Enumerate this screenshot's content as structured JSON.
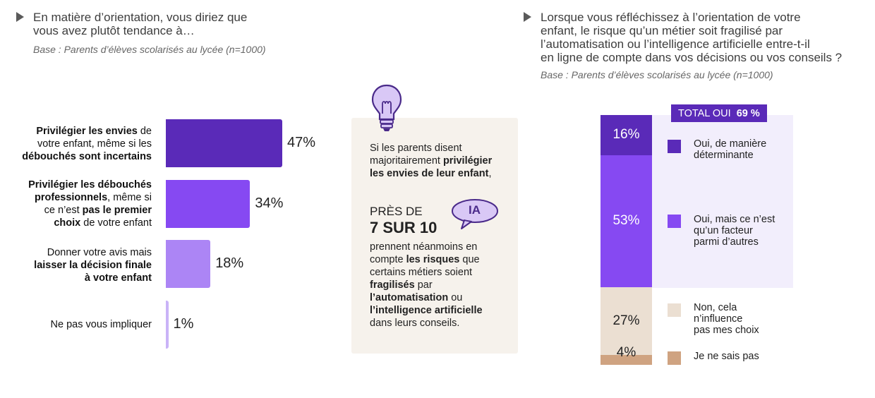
{
  "left": {
    "title_line1": "En matière d’orientation, vous diriez que",
    "title_line2": "vous avez plutôt tendance à…",
    "base": "Base : Parents d’élèves scolarisés au lycée (n=1000)"
  },
  "right": {
    "title_line1": "Lorsque vous réfléchissez à l’orientation de votre",
    "title_line2": "enfant, le risque qu’un métier soit fragilisé par",
    "title_line3": "l’automatisation ou l’intelligence artificielle entre-t-il",
    "title_line4": "en ligne de compte dans vos décisions ou vos conseils ?",
    "base": "Base : Parents d’élèves scolarisés au lycée (n=1000)",
    "total_label": "TOTAL OUI",
    "total_value": "69 %"
  },
  "card": {
    "intro_1": "Si les parents disent",
    "intro_2a": "majoritairement ",
    "intro_2b": "privilégier",
    "intro_3": "les envies de leur enfant",
    "intro_3b": ",",
    "pres_de": "PRÈS DE",
    "big": "7 SUR 10",
    "ia_badge": "IA",
    "body_1": "prennent néanmoins en",
    "body_2a": "compte ",
    "body_2b": "les risques",
    "body_2c": " que",
    "body_3": "certains métiers soient",
    "body_4a": "fragilisés",
    "body_4b": " par",
    "body_5a": "l’automatisation",
    "body_5b": " ou",
    "body_6": "l’intelligence artificielle",
    "body_7": "dans leurs conseils."
  },
  "colors": {
    "bar1": "#5a2ab8",
    "bar2": "#8649f2",
    "bar3": "#ac85f5",
    "bar4": "#c9b3f7",
    "dark_purple": "#5a2ab8",
    "mid_purple": "#8649f2",
    "light_bg": "#f2eefc",
    "beige": "#ebdfd2",
    "tan": "#cfa381",
    "card_bg": "#f6f2ec"
  },
  "icons": {
    "bulb": "lightbulb-icon",
    "ia": "speech-bubble-icon",
    "arrow": "triangle-right-icon"
  },
  "chart_data": [
    {
      "type": "bar",
      "orientation": "horizontal",
      "categories": [
        "Privilégier les envies de votre enfant, même si les débouchés sont incertains",
        "Privilégier les débouchés professionnels, même si ce n’est pas le premier choix de votre enfant",
        "Donner votre avis mais laisser la décision finale à votre enfant",
        "Ne pas vous impliquer"
      ],
      "values": [
        47,
        34,
        18,
        1
      ],
      "value_labels": [
        "47%",
        "34%",
        "18%",
        "1%"
      ],
      "labels_rich": [
        {
          "a": "Privilégier les envies",
          "b": " de",
          "c": "votre enfant, même si les",
          "d": "débouchés sont incertains"
        },
        {
          "a": "Privilégier les débouchés",
          "b": "professionnels",
          "c": ", même si",
          "d": "ce n’est ",
          "e": "pas le premier",
          "f": "choix",
          "g": " de votre enfant"
        },
        {
          "a": "Donner votre avis mais",
          "b": "laisser la décision finale",
          "c": "à votre enfant"
        },
        {
          "a": "Ne pas vous impliquer"
        }
      ],
      "xlim": [
        0,
        100
      ]
    },
    {
      "type": "bar",
      "stacked": true,
      "categories": [
        "Oui, de manière déterminante",
        "Oui, mais ce n’est qu’un facteur parmi d’autres",
        "Non, cela n’influence pas mes choix",
        "Je ne sais pas"
      ],
      "values": [
        16,
        53,
        27,
        4
      ],
      "value_labels": [
        "16%",
        "53%",
        "27%",
        "4%"
      ],
      "legend_lines": [
        [
          "Oui, de manière",
          "déterminante"
        ],
        [
          "Oui, mais ce n’est",
          "qu’un facteur",
          "parmi d’autres"
        ],
        [
          "Non, cela",
          "n’influence",
          "pas mes choix"
        ],
        [
          "Je ne sais pas"
        ]
      ]
    }
  ]
}
